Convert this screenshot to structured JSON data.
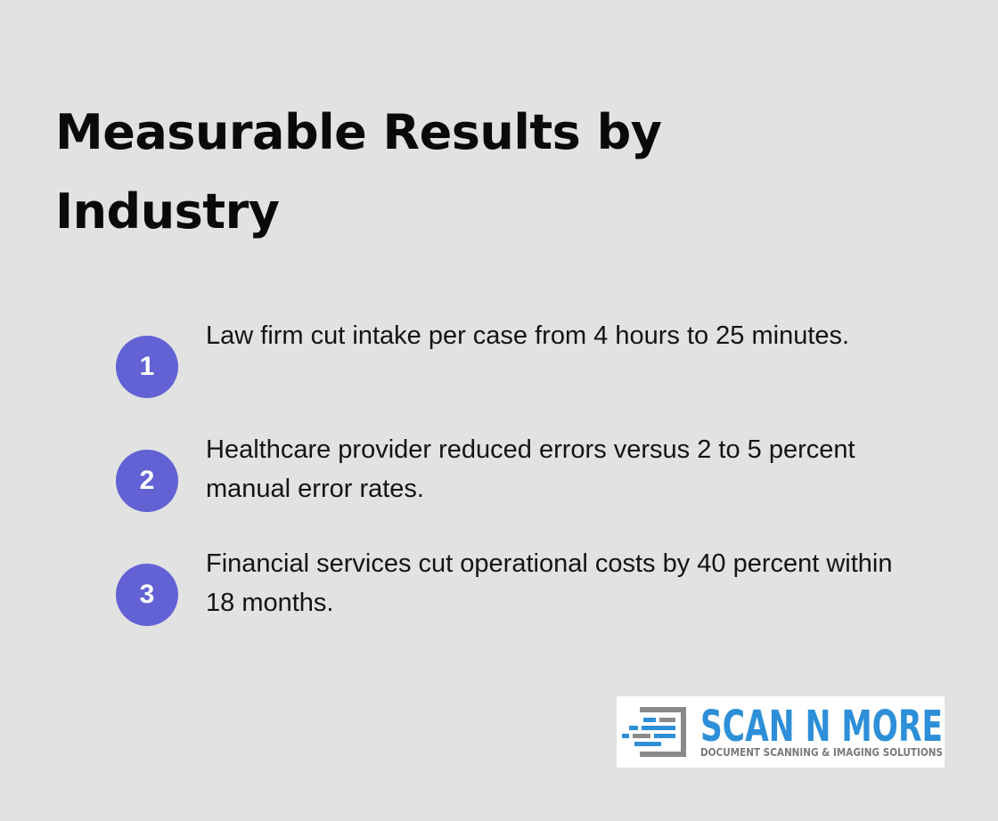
{
  "header": {
    "title": "Measurable Results by Industry"
  },
  "items": [
    {
      "number": "1",
      "text": "Law firm cut intake per case from 4 hours to 25 minutes."
    },
    {
      "number": "2",
      "text": "Healthcare provider reduced errors versus 2 to 5 percent manual error rates."
    },
    {
      "number": "3",
      "text": "Financial services cut operational costs by 40 percent within 18 months."
    }
  ],
  "logo": {
    "name": "SCAN N MORE",
    "tagline": "DOCUMENT SCANNING & IMAGING SOLUTIONS"
  }
}
